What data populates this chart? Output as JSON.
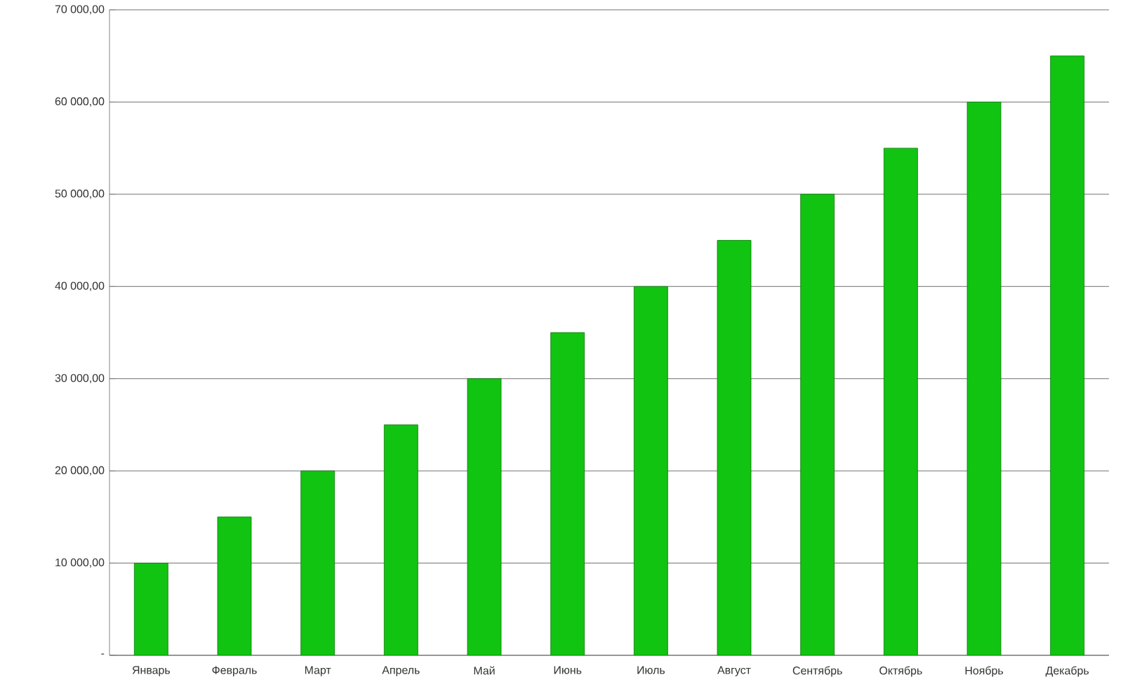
{
  "chart_data": {
    "type": "bar",
    "categories": [
      "Январь",
      "Февраль",
      "Март",
      "Апрель",
      "Май",
      "Июнь",
      "Июль",
      "Август",
      "Сентябрь",
      "Октябрь",
      "Ноябрь",
      "Декабрь"
    ],
    "values": [
      10000,
      15000,
      20000,
      25000,
      30000,
      35000,
      40000,
      45000,
      50000,
      55000,
      60000,
      65000
    ],
    "color": "#11c411",
    "ylim": [
      0,
      70000
    ],
    "yticks": [
      {
        "value": 0,
        "label": "-"
      },
      {
        "value": 10000,
        "label": "10 000,00"
      },
      {
        "value": 20000,
        "label": "20 000,00"
      },
      {
        "value": 30000,
        "label": "30 000,00"
      },
      {
        "value": 40000,
        "label": "40 000,00"
      },
      {
        "value": 50000,
        "label": "50 000,00"
      },
      {
        "value": 60000,
        "label": "60 000,00"
      },
      {
        "value": 70000,
        "label": "70 000,00"
      }
    ],
    "grid": "y"
  }
}
